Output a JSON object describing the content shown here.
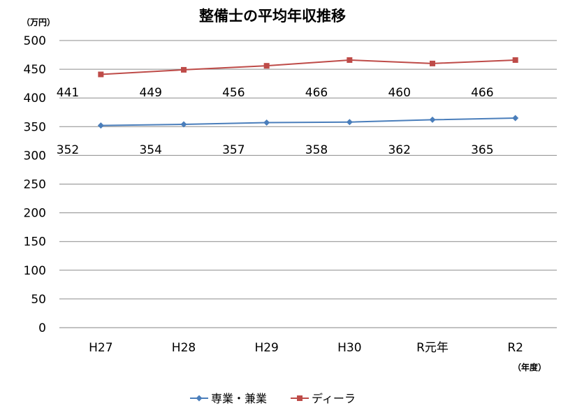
{
  "chart_data": {
    "type": "line",
    "title": "整備士の平均年収推移",
    "y_unit": "（万円）",
    "x_unit": "（年度）",
    "categories": [
      "H27",
      "H28",
      "H29",
      "H30",
      "R元年",
      "R2"
    ],
    "ylim": [
      0,
      500
    ],
    "yticks": [
      0,
      50,
      100,
      150,
      200,
      250,
      300,
      350,
      400,
      450,
      500
    ],
    "grid": true,
    "legend_position": "bottom",
    "series": [
      {
        "name": "専業・兼業",
        "values": [
          352,
          354,
          357,
          358,
          362,
          365
        ],
        "color": "#4a7ebb",
        "marker": "diamond"
      },
      {
        "name": "ディーラ",
        "values": [
          441,
          449,
          456,
          466,
          460,
          466
        ],
        "color": "#be4b48",
        "marker": "square"
      }
    ]
  }
}
